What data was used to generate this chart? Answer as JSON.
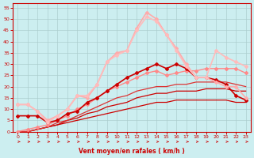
{
  "xlabel": "Vent moyen/en rafales ( km/h )",
  "background_color": "#cceef0",
  "grid_color": "#aacccc",
  "xlim": [
    -0.5,
    23.5
  ],
  "ylim": [
    0,
    57
  ],
  "yticks": [
    0,
    5,
    10,
    15,
    20,
    25,
    30,
    35,
    40,
    45,
    50,
    55
  ],
  "xticks": [
    0,
    1,
    2,
    3,
    4,
    5,
    6,
    7,
    8,
    9,
    10,
    11,
    12,
    13,
    14,
    15,
    16,
    17,
    18,
    19,
    20,
    21,
    22,
    23
  ],
  "lines": [
    {
      "x": [
        0,
        1,
        2,
        3,
        4,
        5,
        6,
        7,
        8,
        9,
        10,
        11,
        12,
        13,
        14,
        15,
        16,
        17,
        18,
        19,
        20,
        21,
        22,
        23
      ],
      "y": [
        0,
        0,
        1,
        2,
        3,
        4,
        5,
        6,
        7,
        8,
        9,
        10,
        11,
        12,
        13,
        13,
        14,
        14,
        14,
        14,
        14,
        14,
        13,
        13
      ],
      "color": "#cc0000",
      "lw": 0.9,
      "marker": null,
      "ms": 0,
      "zorder": 3
    },
    {
      "x": [
        0,
        1,
        2,
        3,
        4,
        5,
        6,
        7,
        8,
        9,
        10,
        11,
        12,
        13,
        14,
        15,
        16,
        17,
        18,
        19,
        20,
        21,
        22,
        23
      ],
      "y": [
        0,
        0,
        1,
        2,
        3,
        5,
        6,
        8,
        9,
        11,
        12,
        13,
        15,
        16,
        17,
        17,
        18,
        18,
        18,
        19,
        19,
        19,
        18,
        18
      ],
      "color": "#cc0000",
      "lw": 0.9,
      "marker": null,
      "ms": 0,
      "zorder": 3
    },
    {
      "x": [
        0,
        1,
        2,
        3,
        4,
        5,
        6,
        7,
        8,
        9,
        10,
        11,
        12,
        13,
        14,
        15,
        16,
        17,
        18,
        19,
        20,
        21,
        22,
        23
      ],
      "y": [
        0,
        0,
        1,
        2,
        4,
        5,
        7,
        9,
        11,
        13,
        15,
        16,
        18,
        19,
        20,
        20,
        21,
        21,
        22,
        22,
        22,
        22,
        21,
        20
      ],
      "color": "#dd3333",
      "lw": 0.9,
      "marker": null,
      "ms": 0,
      "zorder": 3
    },
    {
      "x": [
        0,
        1,
        2,
        3,
        4,
        5,
        6,
        7,
        8,
        9,
        10,
        11,
        12,
        13,
        14,
        15,
        16,
        17,
        18,
        19,
        20,
        21,
        22,
        23
      ],
      "y": [
        7,
        7,
        7,
        4,
        5,
        8,
        9,
        13,
        15,
        18,
        21,
        24,
        26,
        28,
        30,
        28,
        30,
        28,
        24,
        24,
        23,
        21,
        16,
        14
      ],
      "color": "#cc0000",
      "lw": 1.2,
      "marker": "D",
      "ms": 2.0,
      "zorder": 5
    },
    {
      "x": [
        0,
        1,
        2,
        3,
        4,
        5,
        6,
        7,
        8,
        9,
        10,
        11,
        12,
        13,
        14,
        15,
        16,
        17,
        18,
        19,
        20,
        21,
        22,
        23
      ],
      "y": [
        0,
        1,
        2,
        3,
        5,
        7,
        10,
        12,
        15,
        18,
        20,
        22,
        24,
        26,
        27,
        25,
        26,
        27,
        27,
        28,
        28,
        28,
        28,
        26
      ],
      "color": "#ff8888",
      "lw": 1.0,
      "marker": "D",
      "ms": 2.0,
      "zorder": 4
    },
    {
      "x": [
        0,
        1,
        2,
        3,
        4,
        5,
        6,
        7,
        8,
        9,
        10,
        11,
        12,
        13,
        14,
        15,
        16,
        17,
        18,
        19,
        20,
        21,
        22,
        23
      ],
      "y": [
        12,
        12,
        9,
        5,
        7,
        10,
        16,
        15,
        21,
        31,
        35,
        36,
        46,
        53,
        50,
        43,
        37,
        30,
        24,
        24,
        22,
        20,
        20,
        15
      ],
      "color": "#ffaaaa",
      "lw": 1.2,
      "marker": "D",
      "ms": 2.0,
      "zorder": 6
    },
    {
      "x": [
        0,
        1,
        2,
        3,
        4,
        5,
        6,
        7,
        8,
        9,
        10,
        11,
        12,
        13,
        14,
        15,
        16,
        17,
        18,
        19,
        20,
        21,
        22,
        23
      ],
      "y": [
        12,
        12,
        9,
        4,
        7,
        10,
        16,
        16,
        21,
        31,
        34,
        36,
        45,
        51,
        49,
        43,
        36,
        29,
        24,
        24,
        36,
        33,
        31,
        29
      ],
      "color": "#ffbbbb",
      "lw": 1.2,
      "marker": "D",
      "ms": 2.0,
      "zorder": 6
    }
  ]
}
